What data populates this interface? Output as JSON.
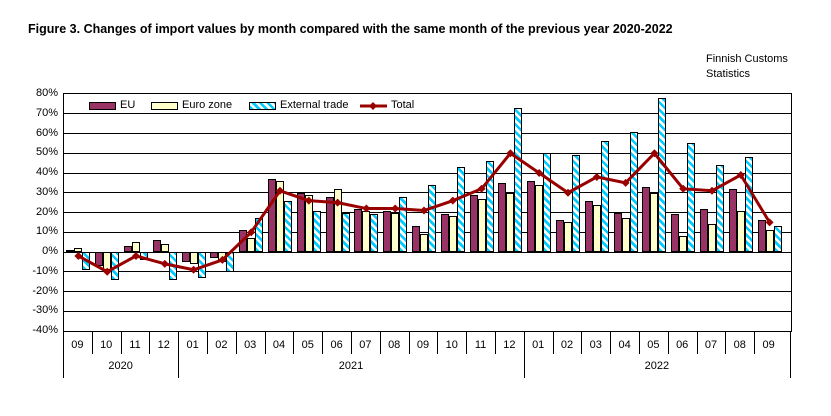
{
  "title": "Figure 3. Changes of import values by month compared with the same month of the previous year 2020-2022",
  "source_note": "Finnish Customs Statistics",
  "chart_data": {
    "type": "bar",
    "title": "Changes of import values by month compared with the same month of the previous year 2020-2022",
    "ylim": [
      -40,
      80
    ],
    "ytick_step": 10,
    "grid": true,
    "legend_position": "top-left-inside",
    "y_tick_labels": [
      "80%",
      "70%",
      "60%",
      "50%",
      "40%",
      "30%",
      "20%",
      "10%",
      "0%",
      "-10%",
      "-20%",
      "-30%",
      "-40%"
    ],
    "categories": [
      "09",
      "10",
      "11",
      "12",
      "01",
      "02",
      "03",
      "04",
      "05",
      "06",
      "07",
      "08",
      "09",
      "10",
      "11",
      "12",
      "01",
      "02",
      "03",
      "04",
      "05",
      "06",
      "07",
      "08",
      "09"
    ],
    "year_groups": [
      {
        "label": "2020",
        "span": 4
      },
      {
        "label": "2021",
        "span": 12
      },
      {
        "label": "2022",
        "span": 9
      }
    ],
    "series": [
      {
        "name": "EU",
        "type": "bar",
        "color": "#993366",
        "values": [
          1,
          -7,
          3,
          6,
          -5,
          -3,
          11,
          37,
          30,
          28,
          22,
          21,
          13,
          19,
          29,
          35,
          36,
          16,
          26,
          20,
          33,
          19,
          22,
          32,
          16
        ]
      },
      {
        "name": "Euro zone",
        "type": "bar",
        "color": "#FFFFCC",
        "values": [
          2,
          -9,
          5,
          4,
          -6,
          -5,
          7,
          36,
          29,
          32,
          21,
          20,
          9,
          18,
          27,
          30,
          34,
          15,
          24,
          17,
          30,
          8,
          14,
          21,
          11
        ]
      },
      {
        "name": "External trade",
        "type": "bar",
        "color": "#00CCFF",
        "pattern": "diagonal-hatch",
        "values": [
          -9,
          -14,
          -4,
          -14,
          -13,
          -10,
          17,
          26,
          21,
          20,
          19,
          28,
          34,
          43,
          46,
          73,
          50,
          49,
          56,
          61,
          78,
          55,
          44,
          48,
          13
        ]
      },
      {
        "name": "Total",
        "type": "line",
        "color": "#990000",
        "values": [
          -2,
          -10,
          -2,
          -6,
          -9,
          -4,
          10,
          31,
          26,
          25,
          22,
          22,
          21,
          26,
          32,
          50,
          40,
          30,
          38,
          35,
          50,
          32,
          31,
          39,
          15
        ]
      }
    ]
  }
}
